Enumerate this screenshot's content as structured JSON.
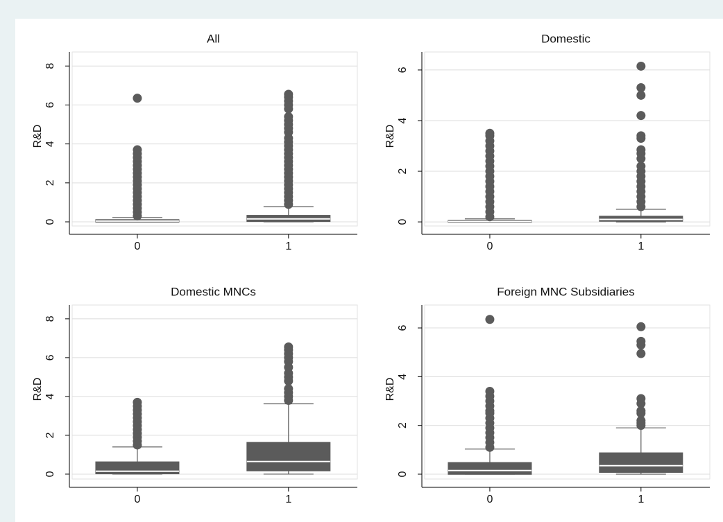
{
  "chart_data": [
    {
      "type": "box",
      "title": "All",
      "ylabel": "R&D",
      "categories": [
        "0",
        "1"
      ],
      "ylim": [
        -0.64,
        8.72
      ],
      "yticks": [
        0,
        2,
        4,
        6,
        8
      ],
      "grid": true,
      "color": "#5b5b5b",
      "median_color": "#ffffff",
      "boxes": [
        {
          "whislo": 0,
          "q1": 0.02,
          "med": 0.04,
          "q3": 0.08,
          "whishi": 0.22,
          "fliers": [
            0.3,
            0.5,
            0.7,
            0.9,
            1.1,
            1.3,
            1.5,
            1.7,
            1.9,
            2.1,
            2.3,
            2.5,
            2.7,
            2.9,
            3.1,
            3.3,
            3.5,
            3.7,
            6.35
          ]
        },
        {
          "whislo": 0,
          "q1": 0.05,
          "med": 0.15,
          "q3": 0.3,
          "whishi": 0.78,
          "fliers": [
            0.9,
            1.1,
            1.3,
            1.5,
            1.7,
            1.9,
            2.1,
            2.3,
            2.5,
            2.7,
            2.9,
            3.1,
            3.3,
            3.5,
            3.7,
            3.9,
            4.1,
            4.3,
            4.6,
            4.8,
            5.0,
            5.2,
            5.4,
            5.8,
            6.0,
            6.2,
            6.4,
            6.55
          ]
        }
      ]
    },
    {
      "type": "box",
      "title": "Domestic",
      "ylabel": "R&D",
      "categories": [
        "0",
        "1"
      ],
      "ylim": [
        -0.49,
        6.71
      ],
      "yticks": [
        0,
        2,
        4,
        6
      ],
      "grid": true,
      "color": "#5b5b5b",
      "median_color": "#ffffff",
      "boxes": [
        {
          "whislo": 0,
          "q1": 0.01,
          "med": 0.02,
          "q3": 0.04,
          "whishi": 0.12,
          "fliers": [
            0.2,
            0.4,
            0.6,
            0.8,
            1.0,
            1.2,
            1.4,
            1.6,
            1.8,
            2.0,
            2.2,
            2.4,
            2.6,
            2.8,
            3.0,
            3.2,
            3.4,
            3.5
          ]
        },
        {
          "whislo": 0,
          "q1": 0.05,
          "med": 0.1,
          "q3": 0.2,
          "whishi": 0.5,
          "fliers": [
            0.6,
            0.8,
            1.0,
            1.2,
            1.4,
            1.6,
            1.8,
            2.0,
            2.2,
            2.5,
            2.7,
            2.85,
            3.3,
            3.4,
            4.2,
            5.0,
            5.3,
            6.15
          ]
        }
      ]
    },
    {
      "type": "box",
      "title": "Domestic MNCs",
      "ylabel": "R&D",
      "categories": [
        "0",
        "1"
      ],
      "ylim": [
        -0.68,
        8.71
      ],
      "yticks": [
        0,
        2,
        4,
        6,
        8
      ],
      "grid": true,
      "color": "#5b5b5b",
      "median_color": "#ffffff",
      "boxes": [
        {
          "whislo": 0,
          "q1": 0.05,
          "med": 0.15,
          "q3": 0.6,
          "whishi": 1.4,
          "fliers": [
            1.5,
            1.7,
            1.9,
            2.1,
            2.3,
            2.5,
            2.7,
            2.9,
            3.1,
            3.3,
            3.5,
            3.7
          ]
        },
        {
          "whislo": 0,
          "q1": 0.2,
          "med": 0.65,
          "q3": 1.6,
          "whishi": 3.62,
          "fliers": [
            3.8,
            4.0,
            4.2,
            4.4,
            4.8,
            5.0,
            5.2,
            5.5,
            5.8,
            6.0,
            6.2,
            6.4,
            6.55
          ]
        }
      ]
    },
    {
      "type": "box",
      "title": "Foreign MNC Subsidiaries",
      "ylabel": "R&D",
      "categories": [
        "0",
        "1"
      ],
      "ylim": [
        -0.54,
        6.94
      ],
      "yticks": [
        0,
        2,
        4,
        6
      ],
      "grid": true,
      "color": "#5b5b5b",
      "median_color": "#ffffff",
      "boxes": [
        {
          "whislo": 0,
          "q1": 0.02,
          "med": 0.15,
          "q3": 0.45,
          "whishi": 1.03,
          "fliers": [
            1.1,
            1.3,
            1.5,
            1.7,
            1.9,
            2.1,
            2.3,
            2.5,
            2.6,
            2.8,
            3.0,
            3.2,
            3.4,
            6.35
          ]
        },
        {
          "whislo": 0,
          "q1": 0.1,
          "med": 0.35,
          "q3": 0.85,
          "whishi": 1.9,
          "fliers": [
            2.0,
            2.1,
            2.2,
            2.5,
            2.6,
            2.9,
            3.1,
            4.95,
            5.3,
            5.45,
            6.05
          ]
        }
      ]
    }
  ]
}
